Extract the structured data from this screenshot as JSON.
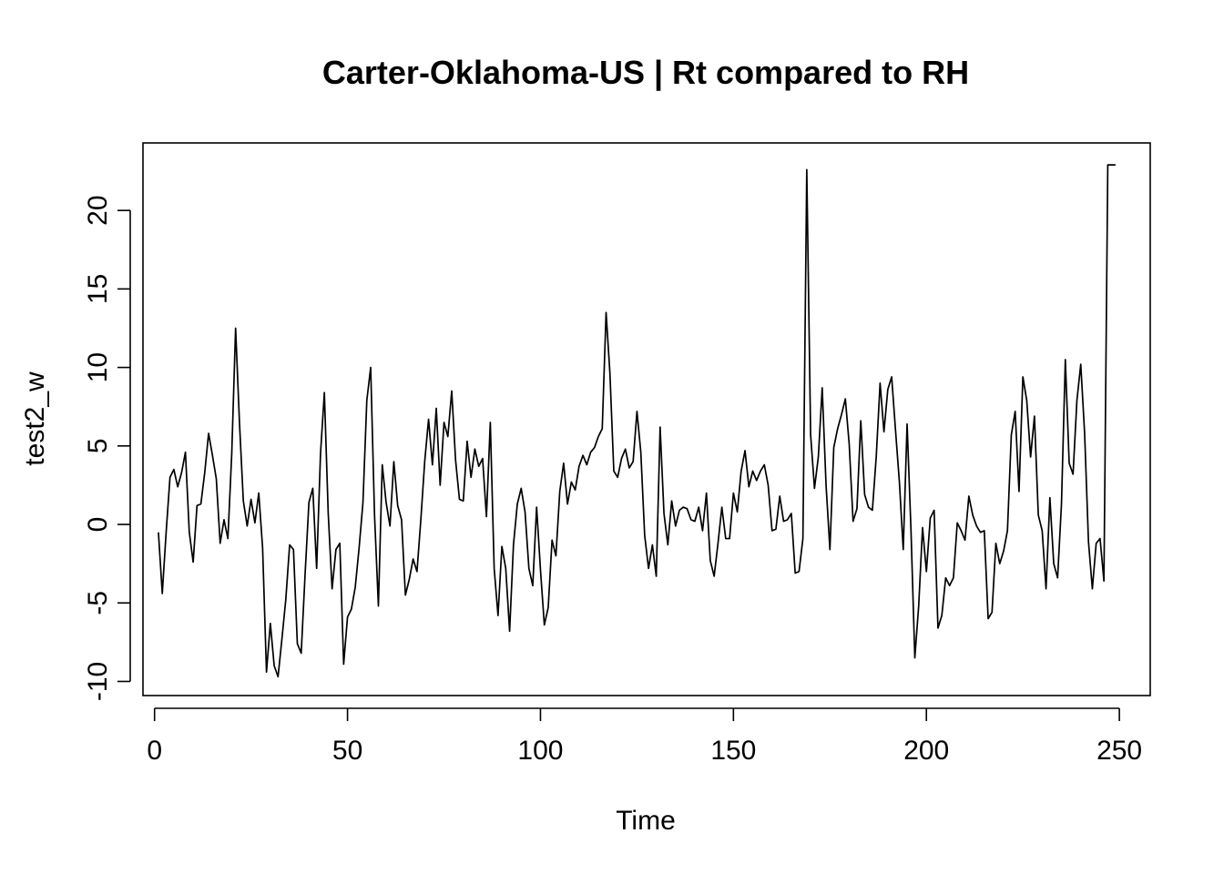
{
  "chart_data": {
    "type": "line",
    "title": "Carter-Oklahoma-US | Rt compared to RH",
    "xlabel": "Time",
    "ylabel": "test2_w",
    "xlim": [
      -3,
      258
    ],
    "ylim": [
      -10.9,
      24.3
    ],
    "x_ticks": [
      0,
      50,
      100,
      150,
      200,
      250
    ],
    "y_ticks": [
      -10,
      -5,
      0,
      5,
      10,
      15,
      20
    ],
    "grid": false,
    "legend": "none",
    "line_color": "#000000",
    "series": [
      {
        "x_start": 1,
        "values": [
          -0.5,
          -4.4,
          -0.5,
          3.0,
          3.5,
          2.4,
          3.3,
          4.6,
          -0.5,
          -2.4,
          1.2,
          1.3,
          3.3,
          5.8,
          4.4,
          2.9,
          -1.2,
          0.3,
          -0.9,
          4.5,
          12.5,
          6.5,
          1.5,
          -0.1,
          1.6,
          0.1,
          2.0,
          -1.5,
          -9.4,
          -6.3,
          -9.0,
          -9.7,
          -7.3,
          -4.8,
          -1.3,
          -1.6,
          -7.6,
          -8.2,
          -3.2,
          1.4,
          2.3,
          -2.8,
          4.5,
          8.4,
          0.7,
          -4.1,
          -1.6,
          -1.2,
          -8.9,
          -5.9,
          -5.4,
          -4.0,
          -1.5,
          1.4,
          7.9,
          10.0,
          0.6,
          -5.2,
          3.8,
          1.4,
          -0.1,
          4.0,
          1.2,
          0.3,
          -4.5,
          -3.5,
          -2.2,
          -3.0,
          0.3,
          4.0,
          6.7,
          3.8,
          7.4,
          2.5,
          6.5,
          5.6,
          8.5,
          4.1,
          1.6,
          1.5,
          5.3,
          3.0,
          4.8,
          3.7,
          4.2,
          0.5,
          6.5,
          -2.8,
          -5.8,
          -1.4,
          -2.8,
          -6.8,
          -1.3,
          1.3,
          2.3,
          0.8,
          -2.8,
          -3.9,
          1.1,
          -2.9,
          -6.4,
          -5.3,
          -1.0,
          -2.0,
          2.1,
          3.9,
          1.3,
          2.7,
          2.2,
          3.7,
          4.4,
          3.8,
          4.6,
          4.9,
          5.6,
          6.1,
          13.5,
          9.6,
          3.4,
          3.0,
          4.2,
          4.8,
          3.6,
          4.0,
          7.2,
          4.6,
          -0.7,
          -2.8,
          -1.3,
          -3.3,
          6.2,
          0.7,
          -1.3,
          1.5,
          -0.1,
          0.9,
          1.1,
          1.0,
          0.3,
          0.2,
          1.1,
          -0.4,
          2.0,
          -2.3,
          -3.3,
          -1.2,
          1.1,
          -0.9,
          -0.9,
          2.0,
          0.8,
          3.4,
          4.7,
          2.4,
          3.4,
          2.8,
          3.4,
          3.8,
          2.5,
          -0.4,
          -0.3,
          1.8,
          0.2,
          0.3,
          0.7,
          -3.1,
          -3.0,
          -0.9,
          22.6,
          5.7,
          2.3,
          4.3,
          8.7,
          2.5,
          -1.6,
          4.9,
          6.1,
          7.0,
          8.0,
          5.1,
          0.2,
          1.0,
          6.6,
          1.9,
          1.1,
          0.9,
          4.3,
          9.0,
          5.9,
          8.6,
          9.4,
          6.0,
          2.7,
          -1.6,
          6.4,
          -0.3,
          -8.5,
          -5.2,
          -0.2,
          -3.0,
          0.4,
          0.9,
          -6.6,
          -5.8,
          -3.4,
          -3.9,
          -3.4,
          0.1,
          -0.4,
          -1.0,
          1.8,
          0.6,
          -0.1,
          -0.5,
          -0.4,
          -6.0,
          -5.6,
          -1.2,
          -2.5,
          -1.7,
          -0.4,
          5.7,
          7.2,
          2.1,
          9.4,
          7.9,
          4.3,
          6.9,
          0.6,
          -0.4,
          -4.1,
          1.7,
          -2.5,
          -3.4,
          1.3,
          10.5,
          3.9,
          3.2,
          7.9,
          10.2,
          5.8,
          -1.1,
          -4.1,
          -1.2,
          -0.9,
          -3.6,
          22.9,
          22.9,
          22.9
        ]
      }
    ]
  }
}
